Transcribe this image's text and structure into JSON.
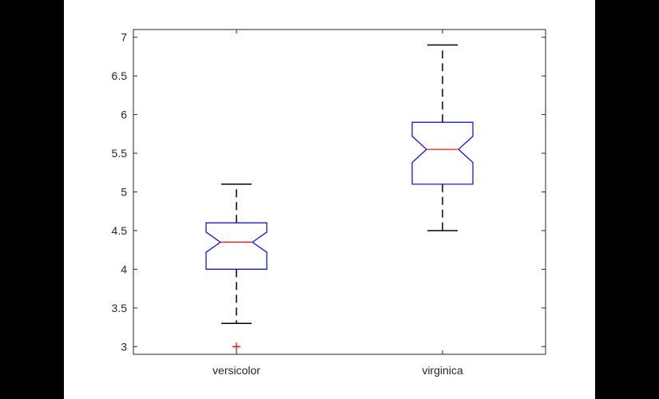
{
  "chart_data": {
    "type": "boxplot",
    "notched": true,
    "title": "",
    "xlabel": "",
    "ylabel": "",
    "ylim": [
      2.9,
      7.1
    ],
    "yticks": [
      3,
      3.5,
      4,
      4.5,
      5,
      5.5,
      6,
      6.5,
      7
    ],
    "ytick_labels": [
      "3",
      "3.5",
      "4",
      "4.5",
      "5",
      "5.5",
      "6",
      "6.5",
      "7"
    ],
    "grid": false,
    "categories": [
      "versicolor",
      "virginica"
    ],
    "boxes": [
      {
        "category": "versicolor",
        "q1": 4.0,
        "median": 4.35,
        "q3": 4.6,
        "notch_low": 4.22,
        "notch_high": 4.48,
        "whisker_low": 3.3,
        "whisker_high": 5.1,
        "outliers": [
          3.0
        ]
      },
      {
        "category": "virginica",
        "q1": 5.1,
        "median": 5.55,
        "q3": 5.9,
        "notch_low": 5.38,
        "notch_high": 5.72,
        "whisker_low": 4.5,
        "whisker_high": 6.9,
        "outliers": []
      }
    ],
    "colors": {
      "box": "#0000ff",
      "median": "#ff0000",
      "whisker": "#000000",
      "outlier": "#ff0000",
      "axes": "#262626",
      "tick_text": "#262626"
    }
  }
}
